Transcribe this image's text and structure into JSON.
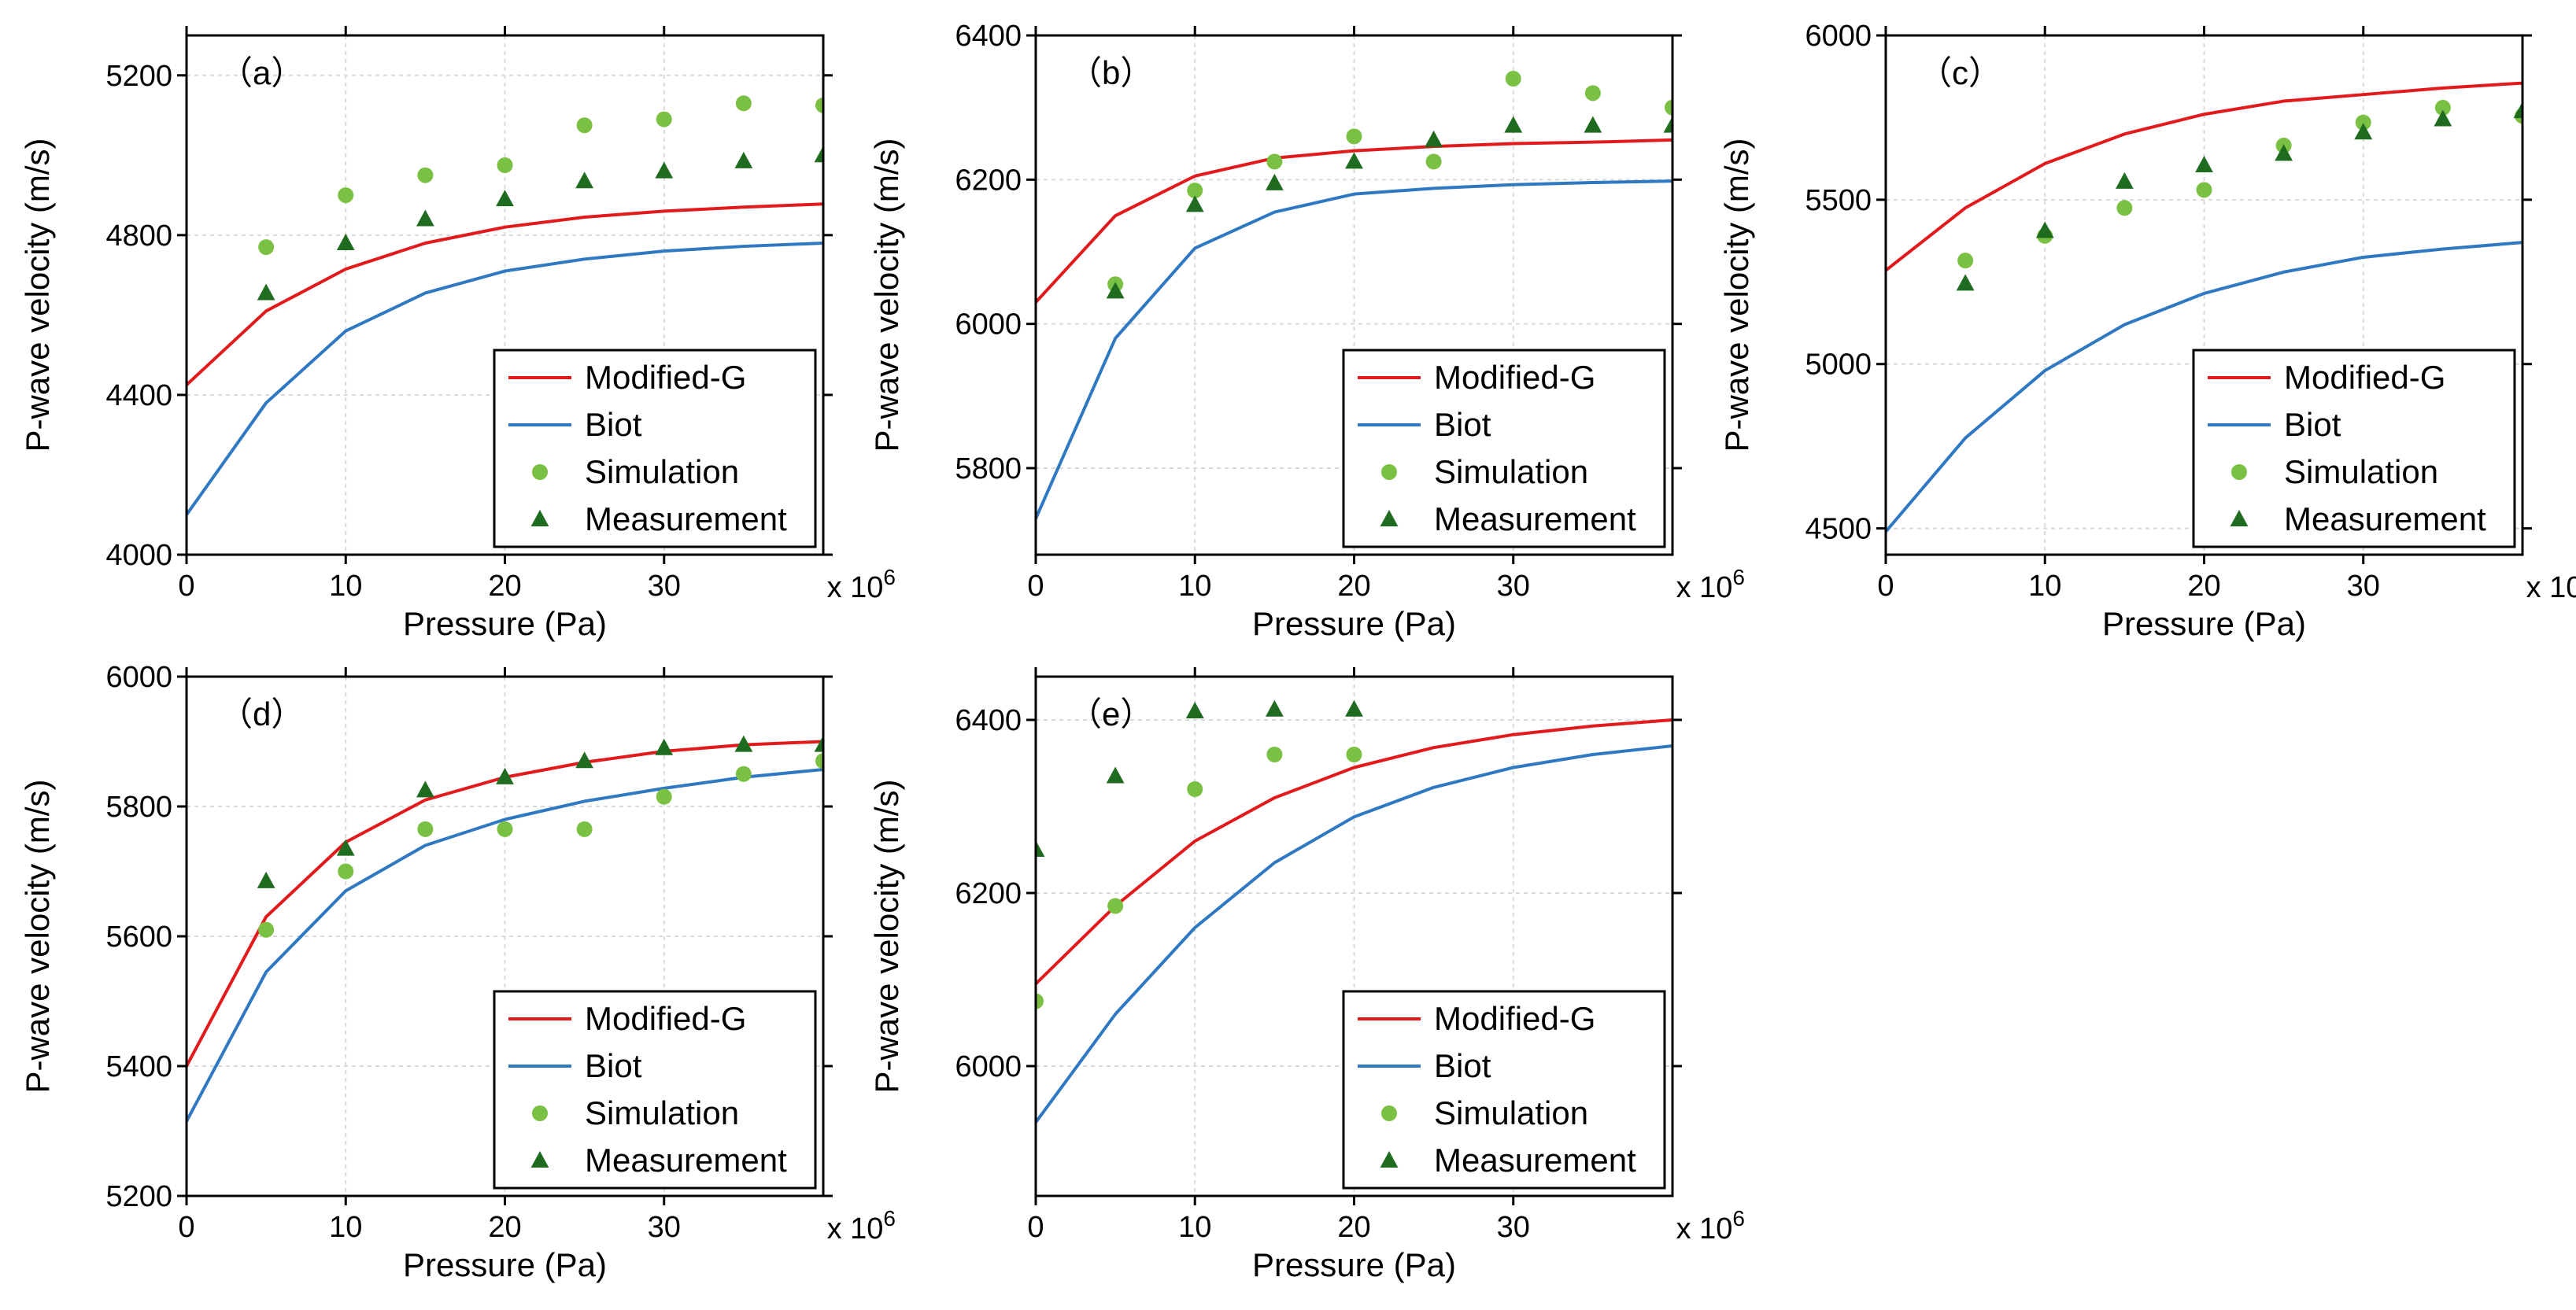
{
  "colors": {
    "modified_g": "#e31a1c",
    "biot": "#2f78c2",
    "simulation": "#7ac143",
    "measurement": "#1f6b1f",
    "grid": "#d9d9d9",
    "axis": "#000000"
  },
  "axis_multiplier_base": "x 10",
  "axis_multiplier_exp": "6",
  "legend": {
    "modified_g": "Modified-G",
    "biot": "Biot",
    "simulation": "Simulation",
    "measurement": "Measurement"
  },
  "chart_data": [
    {
      "type": "line",
      "panel_label": "（a）",
      "xlabel": "Pressure (Pa)",
      "ylabel": "P-wave velocity (m/s)",
      "xlim": [
        0,
        40
      ],
      "ylim": [
        4000,
        5300
      ],
      "xticks": [
        0,
        10,
        20,
        30
      ],
      "yticks": [
        4000,
        4400,
        4800,
        5200
      ],
      "legend_position": "bottom-right",
      "grid": true,
      "series": [
        {
          "name": "Modified-G",
          "kind": "line",
          "x": [
            0,
            5,
            10,
            15,
            20,
            25,
            30,
            35,
            40
          ],
          "y": [
            4425,
            4610,
            4715,
            4780,
            4820,
            4845,
            4860,
            4870,
            4878
          ]
        },
        {
          "name": "Biot",
          "kind": "line",
          "x": [
            0,
            5,
            10,
            15,
            20,
            25,
            30,
            35,
            40
          ],
          "y": [
            4100,
            4380,
            4560,
            4655,
            4710,
            4740,
            4760,
            4772,
            4780
          ]
        },
        {
          "name": "Simulation",
          "kind": "scatter-circle",
          "x": [
            5,
            10,
            15,
            20,
            25,
            30,
            35,
            40
          ],
          "y": [
            4770,
            4900,
            4950,
            4975,
            5075,
            5090,
            5130,
            5125
          ]
        },
        {
          "name": "Measurement",
          "kind": "scatter-triangle",
          "x": [
            5,
            10,
            15,
            20,
            25,
            30,
            35,
            40
          ],
          "y": [
            4655,
            4780,
            4840,
            4890,
            4935,
            4960,
            4985,
            5000
          ]
        }
      ]
    },
    {
      "type": "line",
      "panel_label": "（b）",
      "xlabel": "Pressure (Pa)",
      "ylabel": "P-wave velocity (m/s)",
      "xlim": [
        0,
        40
      ],
      "ylim": [
        5680,
        6400
      ],
      "xticks": [
        0,
        10,
        20,
        30
      ],
      "yticks": [
        5800,
        6000,
        6200,
        6400
      ],
      "legend_position": "bottom-right",
      "grid": true,
      "series": [
        {
          "name": "Modified-G",
          "kind": "line",
          "x": [
            0,
            5,
            10,
            15,
            20,
            25,
            30,
            35,
            40
          ],
          "y": [
            6030,
            6150,
            6205,
            6230,
            6240,
            6246,
            6250,
            6252,
            6255
          ]
        },
        {
          "name": "Biot",
          "kind": "line",
          "x": [
            0,
            5,
            10,
            15,
            20,
            25,
            30,
            35,
            40
          ],
          "y": [
            5730,
            5980,
            6105,
            6155,
            6180,
            6188,
            6193,
            6196,
            6198
          ]
        },
        {
          "name": "Simulation",
          "kind": "scatter-circle",
          "x": [
            5,
            10,
            15,
            20,
            25,
            30,
            35,
            40
          ],
          "y": [
            6055,
            6185,
            6225,
            6260,
            6225,
            6340,
            6320,
            6300
          ]
        },
        {
          "name": "Measurement",
          "kind": "scatter-triangle",
          "x": [
            5,
            10,
            15,
            20,
            25,
            30,
            35,
            40
          ],
          "y": [
            6045,
            6165,
            6195,
            6225,
            6255,
            6275,
            6275,
            6275
          ]
        }
      ]
    },
    {
      "type": "line",
      "panel_label": "（c）",
      "xlabel": "Pressure (Pa)",
      "ylabel": "P-wave velocity (m/s)",
      "xlim": [
        0,
        40
      ],
      "ylim": [
        4420,
        6000
      ],
      "xticks": [
        0,
        10,
        20,
        30
      ],
      "yticks": [
        4500,
        5000,
        5500,
        6000
      ],
      "legend_position": "bottom-right",
      "grid": true,
      "series": [
        {
          "name": "Modified-G",
          "kind": "line",
          "x": [
            0,
            5,
            10,
            15,
            20,
            25,
            30,
            35,
            40
          ],
          "y": [
            5285,
            5475,
            5610,
            5700,
            5760,
            5800,
            5820,
            5840,
            5855
          ]
        },
        {
          "name": "Biot",
          "kind": "line",
          "x": [
            0,
            5,
            10,
            15,
            20,
            25,
            30,
            35,
            40
          ],
          "y": [
            4490,
            4775,
            4980,
            5120,
            5215,
            5280,
            5325,
            5350,
            5370
          ]
        },
        {
          "name": "Simulation",
          "kind": "scatter-circle",
          "x": [
            5,
            10,
            15,
            20,
            25,
            30,
            35,
            40
          ],
          "y": [
            5315,
            5390,
            5475,
            5530,
            5665,
            5735,
            5780,
            5755
          ]
        },
        {
          "name": "Measurement",
          "kind": "scatter-triangle",
          "x": [
            5,
            10,
            15,
            20,
            25,
            30,
            35,
            40
          ],
          "y": [
            5245,
            5405,
            5555,
            5605,
            5640,
            5705,
            5745,
            5770
          ]
        }
      ]
    },
    {
      "type": "line",
      "panel_label": "（d）",
      "xlabel": "Pressure (Pa)",
      "ylabel": "P-wave velocity (m/s)",
      "xlim": [
        0,
        40
      ],
      "ylim": [
        5200,
        6000
      ],
      "xticks": [
        0,
        10,
        20,
        30
      ],
      "yticks": [
        5200,
        5400,
        5600,
        5800,
        6000
      ],
      "legend_position": "bottom-right",
      "grid": true,
      "series": [
        {
          "name": "Modified-G",
          "kind": "line",
          "x": [
            0,
            5,
            10,
            15,
            20,
            25,
            30,
            35,
            40
          ],
          "y": [
            5400,
            5630,
            5745,
            5810,
            5845,
            5868,
            5885,
            5895,
            5900
          ]
        },
        {
          "name": "Biot",
          "kind": "line",
          "x": [
            0,
            5,
            10,
            15,
            20,
            25,
            30,
            35,
            40
          ],
          "y": [
            5315,
            5545,
            5670,
            5740,
            5780,
            5808,
            5828,
            5845,
            5857
          ]
        },
        {
          "name": "Simulation",
          "kind": "scatter-circle",
          "x": [
            5,
            10,
            15,
            20,
            25,
            30,
            35,
            40
          ],
          "y": [
            5610,
            5700,
            5765,
            5765,
            5765,
            5815,
            5850,
            5870
          ]
        },
        {
          "name": "Measurement",
          "kind": "scatter-triangle",
          "x": [
            5,
            10,
            15,
            20,
            25,
            30,
            35,
            40
          ],
          "y": [
            5685,
            5735,
            5825,
            5845,
            5870,
            5890,
            5895,
            5895
          ]
        }
      ]
    },
    {
      "type": "line",
      "panel_label": "（e）",
      "xlabel": "Pressure (Pa)",
      "ylabel": "P-wave velocity (m/s)",
      "xlim": [
        0,
        40
      ],
      "ylim": [
        5850,
        6450
      ],
      "xticks": [
        0,
        10,
        20,
        30
      ],
      "yticks": [
        6000,
        6200,
        6400
      ],
      "legend_position": "bottom-right",
      "grid": true,
      "series": [
        {
          "name": "Modified-G",
          "kind": "line",
          "x": [
            0,
            5,
            10,
            15,
            20,
            25,
            30,
            35,
            40
          ],
          "y": [
            6095,
            6185,
            6260,
            6310,
            6345,
            6368,
            6383,
            6393,
            6400
          ]
        },
        {
          "name": "Biot",
          "kind": "line",
          "x": [
            0,
            5,
            10,
            15,
            20,
            25,
            30,
            35,
            40
          ],
          "y": [
            5935,
            6060,
            6160,
            6235,
            6288,
            6322,
            6345,
            6360,
            6370
          ]
        },
        {
          "name": "Simulation",
          "kind": "scatter-circle",
          "x": [
            0,
            5,
            10,
            15,
            20
          ],
          "y": [
            6075,
            6185,
            6320,
            6360,
            6360
          ]
        },
        {
          "name": "Measurement",
          "kind": "scatter-triangle",
          "x": [
            0,
            5,
            10,
            15,
            20
          ],
          "y": [
            6250,
            6335,
            6410,
            6412,
            6412
          ]
        }
      ]
    }
  ]
}
